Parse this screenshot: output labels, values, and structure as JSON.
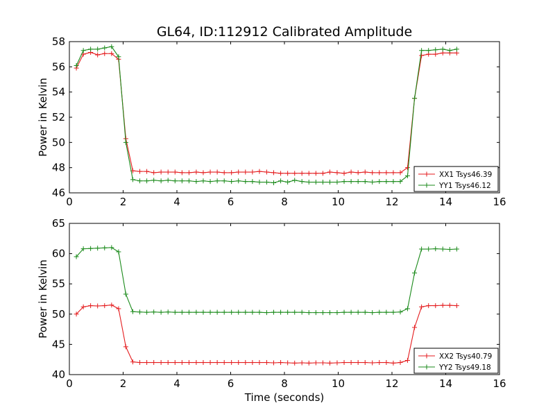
{
  "title": "GL64, ID:112912 Calibrated Amplitude",
  "colors": {
    "xx": "#e41a1c",
    "yy": "#1a8a1a"
  },
  "chart_data": [
    {
      "type": "line",
      "title": "GL64, ID:112912 Calibrated Amplitude",
      "xlabel": "",
      "ylabel": "Power in Kelvin",
      "xlim": [
        0,
        16
      ],
      "ylim": [
        46,
        58
      ],
      "xticks": [
        0,
        2,
        4,
        6,
        8,
        10,
        12,
        14,
        16
      ],
      "yticks": [
        46,
        48,
        50,
        52,
        54,
        56,
        58
      ],
      "grid": false,
      "legend": "bottom-right",
      "x": [
        0.26,
        0.52,
        0.79,
        1.05,
        1.31,
        1.57,
        1.83,
        2.1,
        2.36,
        2.62,
        2.88,
        3.14,
        3.41,
        3.67,
        3.93,
        4.19,
        4.45,
        4.72,
        4.98,
        5.24,
        5.5,
        5.76,
        6.03,
        6.29,
        6.55,
        6.81,
        7.07,
        7.34,
        7.6,
        7.86,
        8.12,
        8.38,
        8.65,
        8.91,
        9.17,
        9.43,
        9.69,
        9.96,
        10.22,
        10.48,
        10.74,
        11.0,
        11.27,
        11.53,
        11.79,
        12.05,
        12.31,
        12.58,
        12.84,
        13.1,
        13.36,
        13.62,
        13.89,
        14.15,
        14.41
      ],
      "series": [
        {
          "name": "XX1 Tsys46.39",
          "color": "#e41a1c",
          "values": [
            55.9,
            57.0,
            57.15,
            56.95,
            57.05,
            57.05,
            56.6,
            50.3,
            47.75,
            47.7,
            47.7,
            47.6,
            47.65,
            47.65,
            47.65,
            47.6,
            47.6,
            47.65,
            47.6,
            47.65,
            47.65,
            47.6,
            47.6,
            47.65,
            47.65,
            47.65,
            47.7,
            47.65,
            47.6,
            47.55,
            47.55,
            47.55,
            47.55,
            47.55,
            47.55,
            47.55,
            47.65,
            47.6,
            47.55,
            47.65,
            47.6,
            47.65,
            47.6,
            47.6,
            47.6,
            47.6,
            47.6,
            48.0,
            53.5,
            56.9,
            57.0,
            57.0,
            57.1,
            57.1,
            57.1
          ]
        },
        {
          "name": "YY1 Tsys46.12",
          "color": "#1a8a1a",
          "values": [
            56.1,
            57.3,
            57.4,
            57.4,
            57.5,
            57.6,
            56.8,
            50.0,
            47.05,
            46.95,
            46.95,
            47.0,
            46.95,
            47.0,
            46.95,
            46.95,
            46.95,
            46.9,
            46.95,
            46.9,
            46.95,
            46.95,
            46.9,
            46.95,
            46.9,
            46.9,
            46.85,
            46.85,
            46.8,
            46.95,
            46.85,
            47.0,
            46.9,
            46.85,
            46.85,
            46.85,
            46.85,
            46.85,
            46.9,
            46.9,
            46.9,
            46.9,
            46.85,
            46.9,
            46.9,
            46.9,
            46.9,
            47.35,
            53.5,
            57.3,
            57.3,
            57.35,
            57.4,
            57.3,
            57.4
          ]
        }
      ]
    },
    {
      "type": "line",
      "title": "",
      "xlabel": "Time (seconds)",
      "ylabel": "Power in Kelvin",
      "xlim": [
        0,
        16
      ],
      "ylim": [
        40,
        65
      ],
      "xticks": [
        0,
        2,
        4,
        6,
        8,
        10,
        12,
        14,
        16
      ],
      "yticks": [
        40,
        45,
        50,
        55,
        60,
        65
      ],
      "grid": false,
      "legend": "bottom-right",
      "x": [
        0.26,
        0.52,
        0.79,
        1.05,
        1.31,
        1.57,
        1.83,
        2.1,
        2.36,
        2.62,
        2.88,
        3.14,
        3.41,
        3.67,
        3.93,
        4.19,
        4.45,
        4.72,
        4.98,
        5.24,
        5.5,
        5.76,
        6.03,
        6.29,
        6.55,
        6.81,
        7.07,
        7.34,
        7.6,
        7.86,
        8.12,
        8.38,
        8.65,
        8.91,
        9.17,
        9.43,
        9.69,
        9.96,
        10.22,
        10.48,
        10.74,
        11.0,
        11.27,
        11.53,
        11.79,
        12.05,
        12.31,
        12.58,
        12.84,
        13.1,
        13.36,
        13.62,
        13.89,
        14.15,
        14.41
      ],
      "series": [
        {
          "name": "XX2 Tsys40.79",
          "color": "#e41a1c",
          "values": [
            50.0,
            51.2,
            51.4,
            51.35,
            51.4,
            51.5,
            50.9,
            44.6,
            42.1,
            42.0,
            42.0,
            42.0,
            42.0,
            42.0,
            42.0,
            42.0,
            42.0,
            42.0,
            42.0,
            42.0,
            42.0,
            42.0,
            42.0,
            42.0,
            42.0,
            42.0,
            42.0,
            42.0,
            41.95,
            42.0,
            41.95,
            41.9,
            41.95,
            41.9,
            41.95,
            41.95,
            41.9,
            41.95,
            42.0,
            42.0,
            42.0,
            42.0,
            41.95,
            42.0,
            42.0,
            41.9,
            42.0,
            42.35,
            47.8,
            51.2,
            51.4,
            51.4,
            51.45,
            51.45,
            51.4
          ]
        },
        {
          "name": "YY2 Tsys49.18",
          "color": "#1a8a1a",
          "values": [
            59.5,
            60.8,
            60.85,
            60.9,
            60.95,
            61.0,
            60.3,
            53.3,
            50.4,
            50.35,
            50.3,
            50.35,
            50.3,
            50.35,
            50.3,
            50.3,
            50.3,
            50.3,
            50.3,
            50.3,
            50.3,
            50.3,
            50.3,
            50.3,
            50.3,
            50.3,
            50.3,
            50.25,
            50.3,
            50.3,
            50.3,
            50.3,
            50.3,
            50.25,
            50.25,
            50.25,
            50.25,
            50.25,
            50.3,
            50.3,
            50.3,
            50.3,
            50.25,
            50.3,
            50.3,
            50.3,
            50.35,
            50.9,
            56.8,
            60.75,
            60.75,
            60.8,
            60.75,
            60.7,
            60.75
          ]
        }
      ]
    }
  ]
}
